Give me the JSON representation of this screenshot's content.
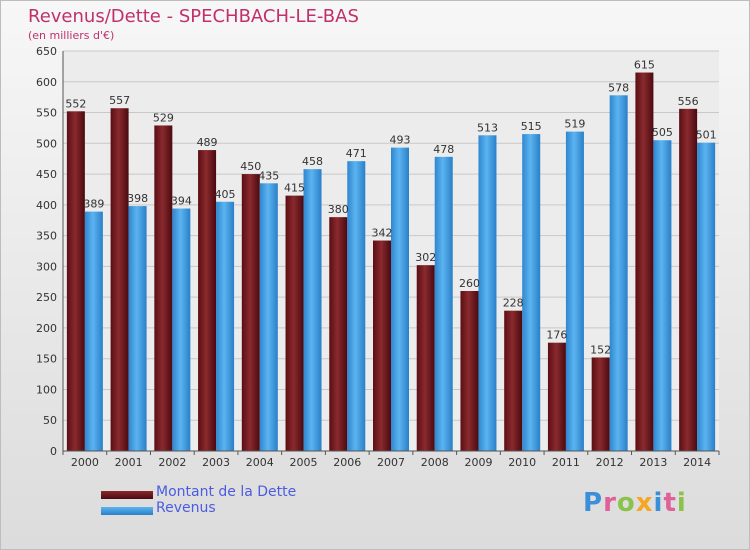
{
  "chart_data": {
    "type": "bar",
    "title": "Revenus/Dette - SPECHBACH-LE-BAS",
    "subtitle": "(en milliers d'€)",
    "categories": [
      "2000",
      "2001",
      "2002",
      "2003",
      "2004",
      "2005",
      "2006",
      "2007",
      "2008",
      "2009",
      "2010",
      "2011",
      "2012",
      "2013",
      "2014"
    ],
    "series": [
      {
        "name": "Montant de la Dette",
        "color": "#7a1f24",
        "values": [
          552,
          557,
          529,
          489,
          450,
          415,
          380,
          342,
          302,
          260,
          228,
          176,
          152,
          615,
          556
        ]
      },
      {
        "name": "Revenus",
        "color": "#3c9ee5",
        "values": [
          389,
          398,
          394,
          405,
          435,
          458,
          471,
          493,
          478,
          513,
          515,
          519,
          578,
          505,
          501
        ]
      }
    ],
    "ylim": [
      0,
      650
    ],
    "yticks": [
      0,
      50,
      100,
      150,
      200,
      250,
      300,
      350,
      400,
      450,
      500,
      550,
      600,
      650
    ],
    "grid": true,
    "legend_position": "bottom-left"
  },
  "branding": {
    "logo_text": "Proxiti",
    "logo_colors": [
      "#3a8fd8",
      "#e0609a",
      "#8bc34a",
      "#f5a623",
      "#3a8fd8",
      "#e0609a",
      "#8bc34a"
    ]
  }
}
